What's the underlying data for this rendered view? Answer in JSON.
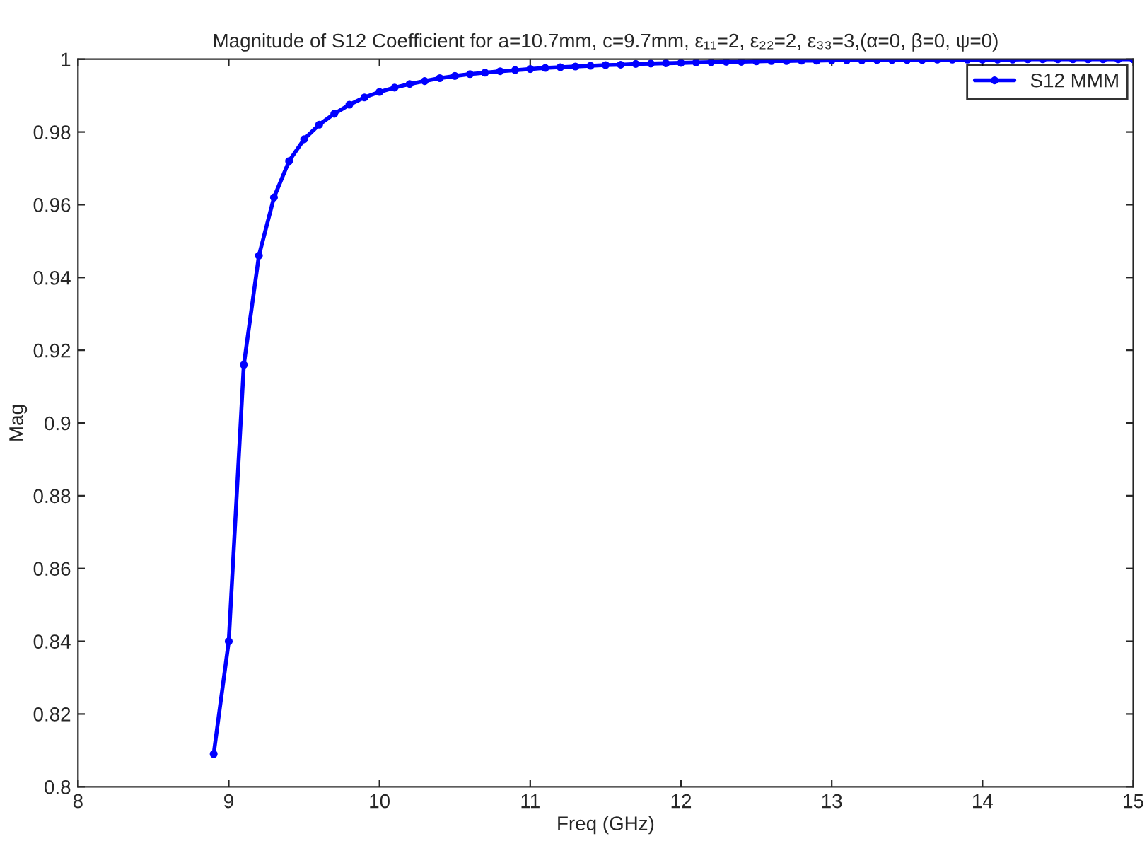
{
  "chart_data": {
    "type": "line",
    "title": "Magnitude of S12 Coefficient for a=10.7mm, c=9.7mm, ε₁₁=2, ε₂₂=2, ε₃₃=3,(α=0, β=0, ψ=0)",
    "xlabel": "Freq (GHz)",
    "ylabel": "Mag",
    "xlim": [
      8,
      15
    ],
    "xticks": [
      8,
      9,
      10,
      11,
      12,
      13,
      14,
      15
    ],
    "ylim": [
      0.8,
      1
    ],
    "yticks": [
      0.8,
      0.82,
      0.84,
      0.86,
      0.88,
      0.9,
      0.92,
      0.94,
      0.96,
      0.98,
      1
    ],
    "grid": false,
    "legend": "top right",
    "marker": "circle",
    "line_style": "solid",
    "series": [
      {
        "name": "S12 MMM",
        "color": "#0000ff",
        "x": [
          8.9,
          9.0,
          9.1,
          9.2,
          9.3,
          9.4,
          9.5,
          9.6,
          9.7,
          9.8,
          9.9,
          10.0,
          10.1,
          10.2,
          10.3,
          10.4,
          10.5,
          10.6,
          10.7,
          10.8,
          10.9,
          11.0,
          11.1,
          11.2,
          11.3,
          11.4,
          11.5,
          11.6,
          11.7,
          11.8,
          11.9,
          12.0,
          12.1,
          12.2,
          12.3,
          12.4,
          12.5,
          12.6,
          12.7,
          12.8,
          12.9,
          13.0,
          13.1,
          13.2,
          13.3,
          13.4,
          13.5,
          13.6,
          13.7,
          13.8,
          13.9,
          14.0,
          14.1,
          14.2,
          14.3,
          14.4,
          14.5,
          14.6,
          14.7,
          14.8,
          14.9,
          15.0
        ],
        "values": [
          0.809,
          0.84,
          0.916,
          0.946,
          0.962,
          0.972,
          0.978,
          0.982,
          0.985,
          0.9875,
          0.9895,
          0.991,
          0.9922,
          0.9932,
          0.994,
          0.9948,
          0.9954,
          0.9959,
          0.9963,
          0.9967,
          0.997,
          0.9973,
          0.9976,
          0.9978,
          0.998,
          0.9982,
          0.9984,
          0.9985,
          0.9987,
          0.9988,
          0.9989,
          0.999,
          0.9991,
          0.9992,
          0.9993,
          0.9993,
          0.9994,
          0.9995,
          0.9995,
          0.9996,
          0.9996,
          0.9997,
          0.9997,
          0.9997,
          0.9998,
          0.9998,
          0.9998,
          0.9998,
          0.9999,
          0.9999,
          0.9999,
          0.9999,
          0.9999,
          0.9999,
          1.0,
          1.0,
          1.0,
          1.0,
          1.0,
          1.0,
          1.0,
          1.0
        ]
      }
    ]
  }
}
